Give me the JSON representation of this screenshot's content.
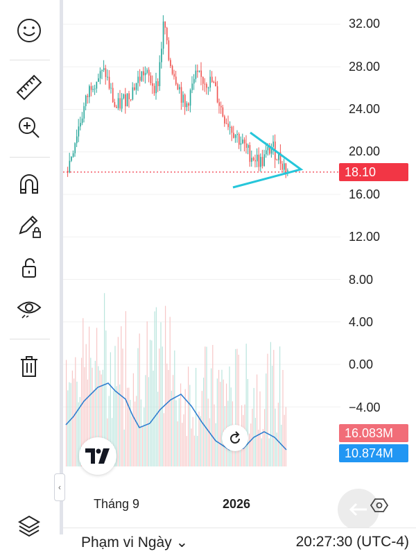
{
  "price_axis": {
    "ticks": [
      "32.00",
      "28.00",
      "24.00",
      "20.00",
      "16.00",
      "12.00",
      "8.00",
      "4.00",
      "0.00",
      "−4.00"
    ],
    "tick_values": [
      32,
      28,
      24,
      20,
      16,
      12,
      8,
      4,
      0,
      -4
    ],
    "last_price": "18.10",
    "volume_badge": "16.083M",
    "volume_ma_badge": "10.874M"
  },
  "time_axis": {
    "month_label": "Tháng 9",
    "year_label": "2026"
  },
  "bottom_bar": {
    "range_label": "Phạm vi Ngày",
    "time": "20:27:30 (UTC-4)"
  },
  "colors": {
    "up": "#26a69a",
    "down": "#ef5350",
    "last_price": "#f23645",
    "volume_ma": "#2f7fd0",
    "volume_badge": "#f16d78",
    "volume_ma_badge": "#2196f3",
    "drawing": "#26c6da"
  },
  "toolbar": {
    "icons": [
      "smiley-icon",
      "ruler-icon",
      "zoom-in-icon",
      "magnet-icon",
      "pencil-lock-icon",
      "unlock-icon",
      "eye-icon",
      "trash-icon"
    ]
  }
}
